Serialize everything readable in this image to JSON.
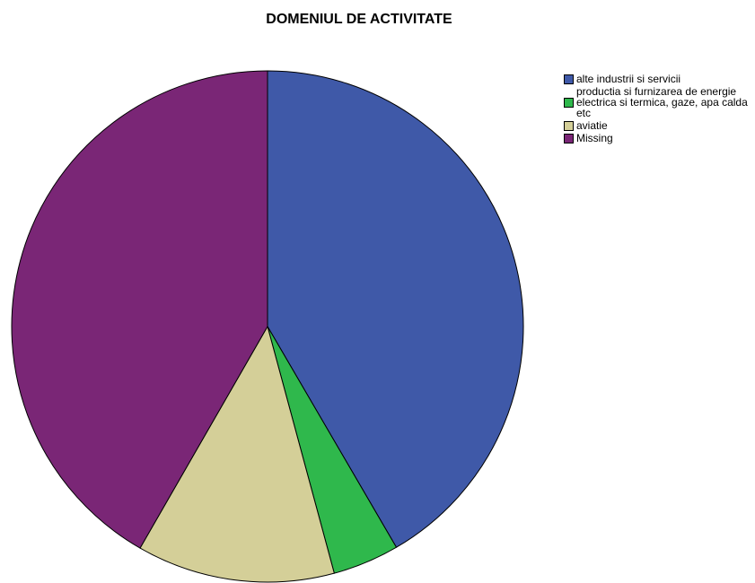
{
  "chart_data": {
    "type": "pie",
    "title": "DOMENIUL DE ACTIVITATE",
    "categories": [
      "alte industrii si servicii",
      "productia si furnizarea de energie electrica si termica, gaze, apa calda etc",
      "aviatie",
      "Missing"
    ],
    "values": [
      41.6,
      4.2,
      12.5,
      41.7
    ],
    "colors": [
      "#3f59a8",
      "#2fb84c",
      "#d4cf98",
      "#7a2676"
    ],
    "legend": "top-right"
  }
}
